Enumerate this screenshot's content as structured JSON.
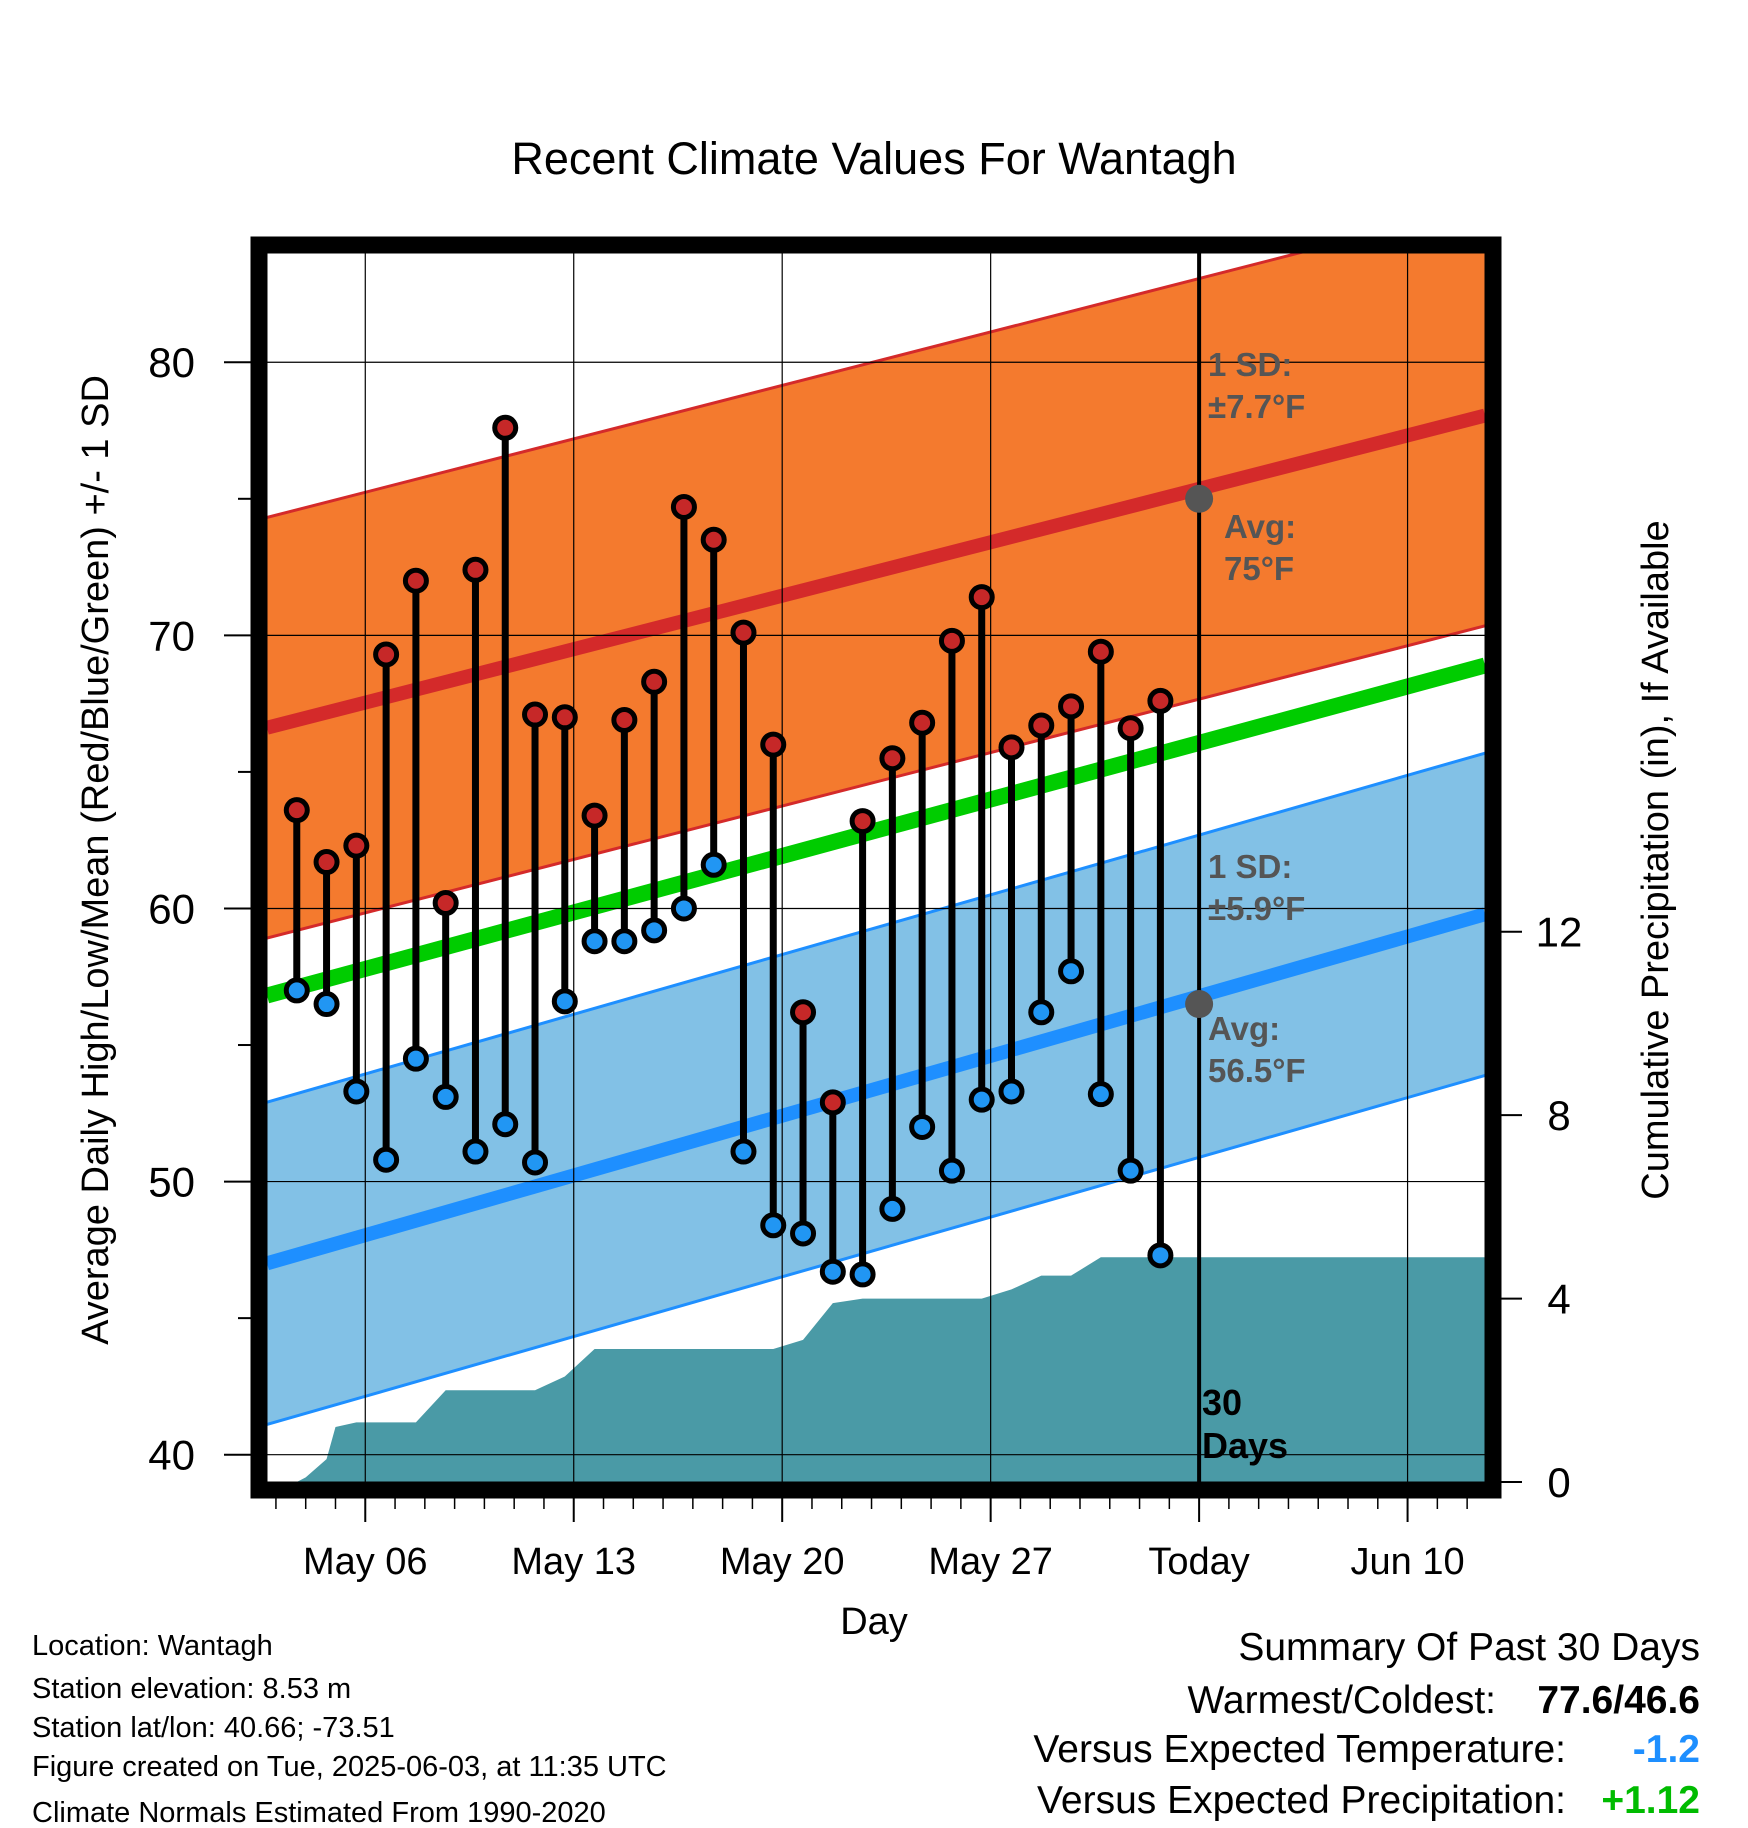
{
  "chart_data": {
    "type": "line",
    "title": "Recent Climate Values For Wantagh",
    "xlabel": "Day",
    "ylabel_left": "Average Daily High/Low/Mean (Red/Blue/Green) +/- 1 SD",
    "ylabel_right": "Cumulative Precipitation (in), If Available",
    "ylim_left": [
      39,
      84
    ],
    "ylim_right": [
      0,
      26.8
    ],
    "y_ticks_left": [
      40,
      50,
      60,
      70,
      80
    ],
    "y_ticks_right": [
      0,
      4,
      8,
      12
    ],
    "x_range": [
      -0.3,
      40.6
    ],
    "x_ticks": [
      {
        "day": 3,
        "label": "May 06"
      },
      {
        "day": 10,
        "label": "May 13"
      },
      {
        "day": 17,
        "label": "May 20"
      },
      {
        "day": 24,
        "label": "May 27"
      },
      {
        "day": 31,
        "label": "Today"
      },
      {
        "day": 38,
        "label": "Jun 10"
      }
    ],
    "grid": true,
    "days": [
      0.7,
      1.7,
      2.7,
      3.7,
      4.7,
      5.7,
      6.7,
      7.7,
      8.7,
      9.7,
      10.7,
      11.7,
      12.7,
      13.7,
      14.7,
      15.7,
      16.7,
      17.7,
      18.7,
      19.7,
      20.7,
      21.7,
      22.7,
      23.7,
      24.7,
      25.7,
      26.7,
      27.7,
      28.7,
      29.7
    ],
    "daily_high": [
      63.6,
      61.7,
      62.3,
      69.3,
      72.0,
      60.2,
      72.4,
      77.6,
      67.1,
      67.0,
      63.4,
      66.9,
      68.3,
      74.7,
      73.5,
      70.1,
      66.0,
      56.2,
      52.9,
      63.2,
      65.5,
      66.8,
      69.8,
      71.4,
      65.9,
      66.7,
      67.4,
      69.4,
      66.6,
      67.6
    ],
    "daily_low": [
      57.0,
      56.5,
      53.3,
      50.8,
      54.5,
      53.1,
      51.1,
      52.1,
      50.7,
      56.6,
      58.8,
      58.8,
      59.2,
      60.0,
      61.6,
      51.1,
      48.4,
      48.1,
      46.7,
      46.6,
      49.0,
      52.0,
      50.4,
      53.0,
      53.3,
      56.2,
      57.7,
      53.2,
      50.4,
      47.3
    ],
    "normal_high": {
      "day0": 66.7,
      "slope": 0.2795,
      "sd": 7.7
    },
    "normal_low": {
      "day0": 47.1,
      "slope": 0.3125,
      "sd": 5.9
    },
    "normal_mean": {
      "day0": 56.9,
      "slope": 0.2955
    },
    "precip_x": [
      0,
      0.7,
      1.0,
      1.7,
      2.0,
      2.7,
      3.7,
      4.7,
      5.7,
      6.7,
      7.7,
      8.7,
      9.7,
      10.7,
      11.7,
      12.7,
      13.7,
      14.7,
      15.7,
      16.7,
      17.7,
      18.7,
      19.7,
      20.7,
      21.7,
      22.7,
      23.7,
      24.7,
      25.7,
      26.7,
      27.7,
      28.7,
      29.7,
      40.6
    ],
    "precip_cum": [
      0,
      0,
      0.1,
      0.5,
      1.2,
      1.3,
      1.3,
      1.3,
      2.0,
      2.0,
      2.0,
      2.0,
      2.3,
      2.9,
      2.9,
      2.9,
      2.9,
      2.9,
      2.9,
      2.9,
      3.1,
      3.9,
      4.0,
      4.0,
      4.0,
      4.0,
      4.0,
      4.2,
      4.5,
      4.5,
      4.9,
      4.9,
      4.9,
      4.9
    ],
    "today_day": 31,
    "today_normal_high_marker": 75.0,
    "today_normal_low_marker": 56.5,
    "annotations": {
      "high_sd_line1": "1 SD:",
      "high_sd_line2": "±7.7°F",
      "high_avg_line1": "Avg:",
      "high_avg_line2": "75°F",
      "low_sd_line1": "1 SD:",
      "low_sd_line2": "±5.9°F",
      "low_avg_line1": "Avg:",
      "low_avg_line2": "56.5°F",
      "days_line1": "30",
      "days_line2": "Days"
    },
    "colors": {
      "high_band": "#f47a2e",
      "high_line": "#d42a2a",
      "low_band": "#82c1e6",
      "low_line": "#1e8fff",
      "mean_line": "#00cc00",
      "precip": "#4a9aa6",
      "high_marker": "#c62828",
      "low_marker": "#2196f3",
      "annotation_text": "#555555"
    }
  },
  "info": {
    "location": "Location: Wantagh",
    "elevation": "Station elevation: 8.53 m",
    "latlon": "Station lat/lon: 40.66; -73.51",
    "created": "Figure created on Tue, 2025-06-03, at 11:35 UTC",
    "normals": "Climate Normals Estimated From 1990-2020"
  },
  "summary": {
    "title": "Summary Of Past 30 Days",
    "warm_cold_label": "Warmest/Coldest:",
    "warm_cold_value": "77.6/46.6",
    "temp_label": "Versus Expected Temperature:",
    "temp_value": "-1.2",
    "temp_color": "#1e8fff",
    "precip_label": "Versus Expected Precipitation:",
    "precip_value": "+1.12",
    "precip_color": "#00bb00"
  }
}
